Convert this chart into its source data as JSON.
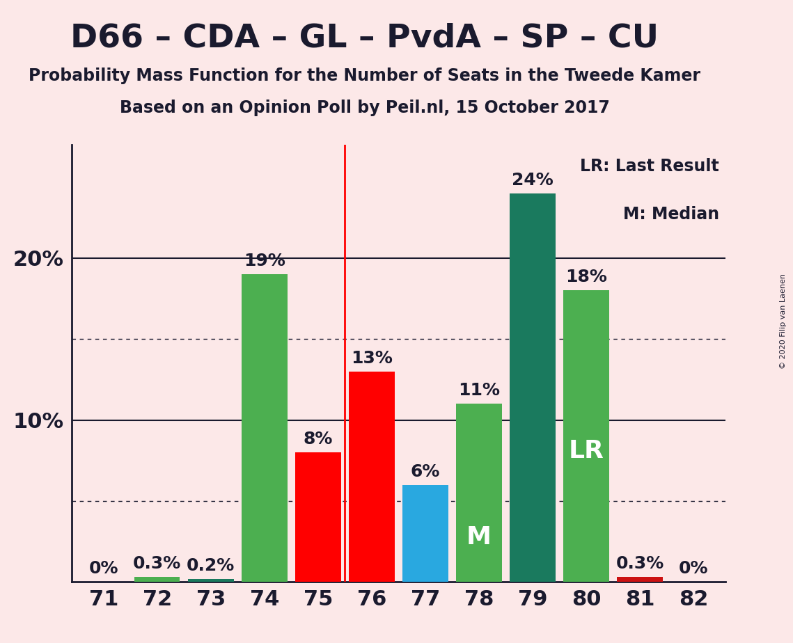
{
  "title": "D66 – CDA – GL – PvdA – SP – CU",
  "subtitle1": "Probability Mass Function for the Number of Seats in the Tweede Kamer",
  "subtitle2": "Based on an Opinion Poll by Peil.nl, 15 October 2017",
  "copyright": "© 2020 Filip van Laenen",
  "background_color": "#fce8e8",
  "seats": [
    71,
    72,
    73,
    74,
    75,
    76,
    77,
    78,
    79,
    80,
    81,
    82
  ],
  "values": [
    0.0,
    0.3,
    0.2,
    19.0,
    8.0,
    13.0,
    6.0,
    11.0,
    24.0,
    18.0,
    0.3,
    0.0
  ],
  "colors": [
    "#fce8e8",
    "#4caf50",
    "#1a7a5e",
    "#4caf50",
    "#ff0000",
    "#ff0000",
    "#29a8e0",
    "#4caf50",
    "#1a7a5e",
    "#4caf50",
    "#cc1111",
    "#fce8e8"
  ],
  "bar_labels": [
    "0%",
    "0.3%",
    "0.2%",
    "19%",
    "8%",
    "13%",
    "6%",
    "11%",
    "24%",
    "18%",
    "0.3%",
    "0%"
  ],
  "median_seat": 78,
  "last_result_seat": 80,
  "vline_x": 75.5,
  "legend_text1": "LR: Last Result",
  "legend_text2": "M: Median",
  "ylim_max": 27,
  "dotted_lines": [
    5,
    15
  ],
  "solid_lines": [
    10,
    20
  ],
  "title_fontsize": 34,
  "subtitle_fontsize": 17,
  "tick_fontsize": 22,
  "bar_label_fontsize": 18,
  "inside_label_fontsize": 26
}
